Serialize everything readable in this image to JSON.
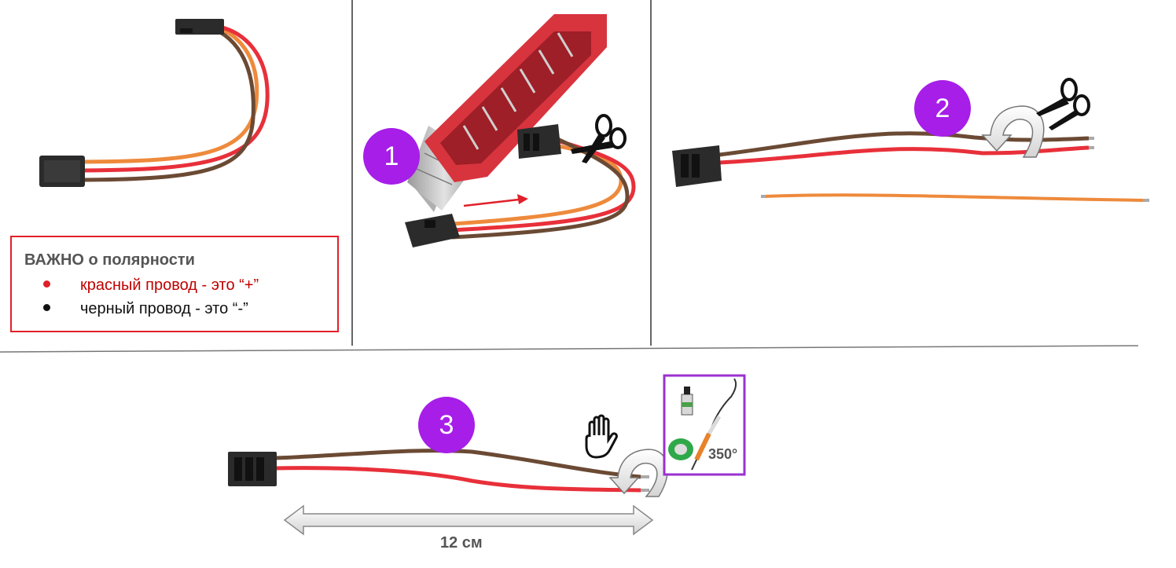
{
  "note": {
    "title": "ВАЖНО о полярности",
    "red_wire": "красный провод - это “+”",
    "black_wire": "черный провод - это “-”"
  },
  "steps": [
    "1",
    "2",
    "3"
  ],
  "dimension_label": "12 см",
  "temperature_label": "350°",
  "colors": {
    "wire_brown": "#6b4a34",
    "wire_red": "#e8303a",
    "wire_orange": "#ee8a3c",
    "connector": "#2b2b2b",
    "badge": "#a61ee8",
    "note_border": "#e0202a",
    "knife_red": "#d8343e"
  },
  "icons": [
    "scissors-icon",
    "scissors-icon",
    "hand-icon",
    "rotate-arrow-icon",
    "rotate-arrow-icon",
    "soldering-kit-icon",
    "right-arrow-icon",
    "double-arrow-icon"
  ]
}
